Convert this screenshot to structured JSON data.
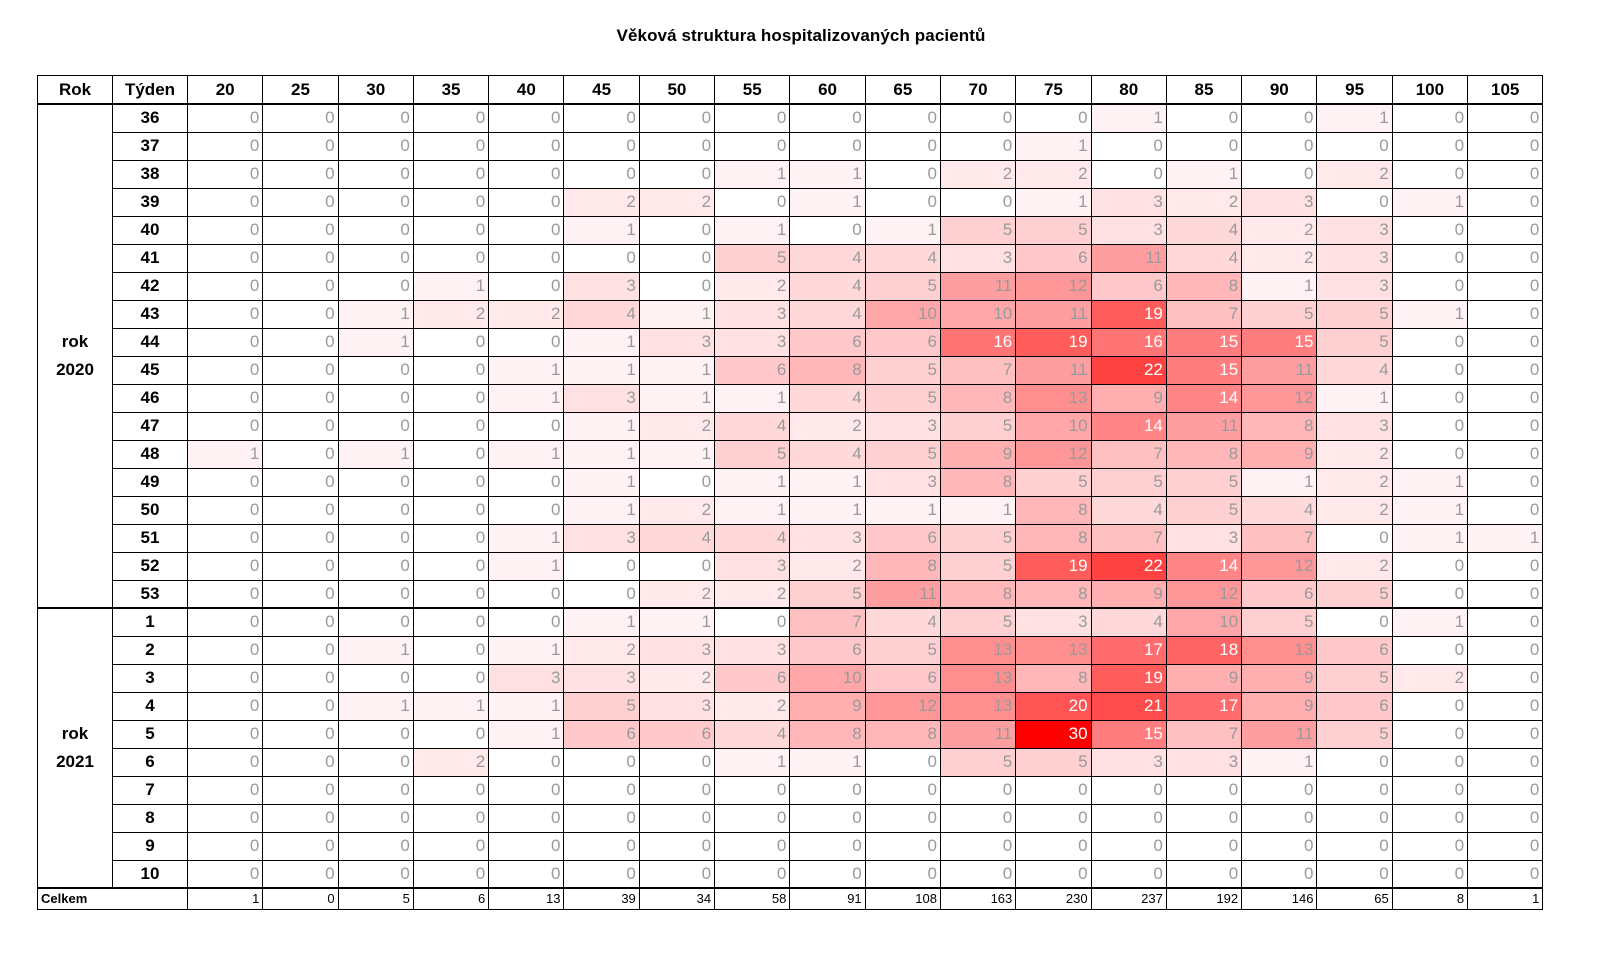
{
  "chart_data": {
    "type": "heatmap",
    "title": "Věková struktura hospitalizovaných pacientů",
    "header_year": "Rok",
    "header_week": "Týden",
    "x": [
      "20",
      "25",
      "30",
      "35",
      "40",
      "45",
      "50",
      "55",
      "60",
      "65",
      "70",
      "75",
      "80",
      "85",
      "90",
      "95",
      "100",
      "105"
    ],
    "groups": [
      {
        "label_line1": "rok",
        "label_line2": "2020",
        "rows": [
          {
            "week": "36",
            "values": [
              0,
              0,
              0,
              0,
              0,
              0,
              0,
              0,
              0,
              0,
              0,
              0,
              1,
              0,
              0,
              1,
              0,
              0
            ]
          },
          {
            "week": "37",
            "values": [
              0,
              0,
              0,
              0,
              0,
              0,
              0,
              0,
              0,
              0,
              0,
              1,
              0,
              0,
              0,
              0,
              0,
              0
            ]
          },
          {
            "week": "38",
            "values": [
              0,
              0,
              0,
              0,
              0,
              0,
              0,
              1,
              1,
              0,
              2,
              2,
              0,
              1,
              0,
              2,
              0,
              0
            ]
          },
          {
            "week": "39",
            "values": [
              0,
              0,
              0,
              0,
              0,
              2,
              2,
              0,
              1,
              0,
              0,
              1,
              3,
              2,
              3,
              0,
              1,
              0
            ]
          },
          {
            "week": "40",
            "values": [
              0,
              0,
              0,
              0,
              0,
              1,
              0,
              1,
              0,
              1,
              5,
              5,
              3,
              4,
              2,
              3,
              0,
              0
            ]
          },
          {
            "week": "41",
            "values": [
              0,
              0,
              0,
              0,
              0,
              0,
              0,
              5,
              4,
              4,
              3,
              6,
              11,
              4,
              2,
              3,
              0,
              0
            ]
          },
          {
            "week": "42",
            "values": [
              0,
              0,
              0,
              1,
              0,
              3,
              0,
              2,
              4,
              5,
              11,
              12,
              6,
              8,
              1,
              3,
              0,
              0
            ]
          },
          {
            "week": "43",
            "values": [
              0,
              0,
              1,
              2,
              2,
              4,
              1,
              3,
              4,
              10,
              10,
              11,
              19,
              7,
              5,
              5,
              1,
              0
            ]
          },
          {
            "week": "44",
            "values": [
              0,
              0,
              1,
              0,
              0,
              1,
              3,
              3,
              6,
              6,
              16,
              19,
              16,
              15,
              15,
              5,
              0,
              0
            ]
          },
          {
            "week": "45",
            "values": [
              0,
              0,
              0,
              0,
              1,
              1,
              1,
              6,
              8,
              5,
              7,
              11,
              22,
              15,
              11,
              4,
              0,
              0
            ]
          },
          {
            "week": "46",
            "values": [
              0,
              0,
              0,
              0,
              1,
              3,
              1,
              1,
              4,
              5,
              8,
              13,
              9,
              14,
              12,
              1,
              0,
              0
            ]
          },
          {
            "week": "47",
            "values": [
              0,
              0,
              0,
              0,
              0,
              1,
              2,
              4,
              2,
              3,
              5,
              10,
              14,
              11,
              8,
              3,
              0,
              0
            ]
          },
          {
            "week": "48",
            "values": [
              1,
              0,
              1,
              0,
              1,
              1,
              1,
              5,
              4,
              5,
              9,
              12,
              7,
              8,
              9,
              2,
              0,
              0
            ]
          },
          {
            "week": "49",
            "values": [
              0,
              0,
              0,
              0,
              0,
              1,
              0,
              1,
              1,
              3,
              8,
              5,
              5,
              5,
              1,
              2,
              1,
              0
            ]
          },
          {
            "week": "50",
            "values": [
              0,
              0,
              0,
              0,
              0,
              1,
              2,
              1,
              1,
              1,
              1,
              8,
              4,
              5,
              4,
              2,
              1,
              0
            ]
          },
          {
            "week": "51",
            "values": [
              0,
              0,
              0,
              0,
              1,
              3,
              4,
              4,
              3,
              6,
              5,
              8,
              7,
              3,
              7,
              0,
              1,
              1
            ]
          },
          {
            "week": "52",
            "values": [
              0,
              0,
              0,
              0,
              1,
              0,
              0,
              3,
              2,
              8,
              5,
              19,
              22,
              14,
              12,
              2,
              0,
              0
            ]
          },
          {
            "week": "53",
            "values": [
              0,
              0,
              0,
              0,
              0,
              0,
              2,
              2,
              5,
              11,
              8,
              8,
              9,
              12,
              6,
              5,
              0,
              0
            ]
          }
        ]
      },
      {
        "label_line1": "rok",
        "label_line2": "2021",
        "rows": [
          {
            "week": "1",
            "values": [
              0,
              0,
              0,
              0,
              0,
              1,
              1,
              0,
              7,
              4,
              5,
              3,
              4,
              10,
              5,
              0,
              1,
              0
            ]
          },
          {
            "week": "2",
            "values": [
              0,
              0,
              1,
              0,
              1,
              2,
              3,
              3,
              6,
              5,
              13,
              13,
              17,
              18,
              13,
              6,
              0,
              0
            ]
          },
          {
            "week": "3",
            "values": [
              0,
              0,
              0,
              0,
              3,
              3,
              2,
              6,
              10,
              6,
              13,
              8,
              19,
              9,
              9,
              5,
              2,
              0
            ]
          },
          {
            "week": "4",
            "values": [
              0,
              0,
              1,
              1,
              1,
              5,
              3,
              2,
              9,
              12,
              13,
              20,
              21,
              17,
              9,
              6,
              0,
              0
            ]
          },
          {
            "week": "5",
            "values": [
              0,
              0,
              0,
              0,
              1,
              6,
              6,
              4,
              8,
              8,
              11,
              30,
              15,
              7,
              11,
              5,
              0,
              0
            ]
          },
          {
            "week": "6",
            "values": [
              0,
              0,
              0,
              2,
              0,
              0,
              0,
              1,
              1,
              0,
              5,
              5,
              3,
              3,
              1,
              0,
              0,
              0
            ]
          },
          {
            "week": "7",
            "values": [
              0,
              0,
              0,
              0,
              0,
              0,
              0,
              0,
              0,
              0,
              0,
              0,
              0,
              0,
              0,
              0,
              0,
              0
            ]
          },
          {
            "week": "8",
            "values": [
              0,
              0,
              0,
              0,
              0,
              0,
              0,
              0,
              0,
              0,
              0,
              0,
              0,
              0,
              0,
              0,
              0,
              0
            ]
          },
          {
            "week": "9",
            "values": [
              0,
              0,
              0,
              0,
              0,
              0,
              0,
              0,
              0,
              0,
              0,
              0,
              0,
              0,
              0,
              0,
              0,
              0
            ]
          },
          {
            "week": "10",
            "values": [
              0,
              0,
              0,
              0,
              0,
              0,
              0,
              0,
              0,
              0,
              0,
              0,
              0,
              0,
              0,
              0,
              0,
              0
            ]
          }
        ]
      }
    ],
    "totals_label": "Celkem",
    "totals": [
      1,
      0,
      5,
      6,
      13,
      39,
      34,
      58,
      91,
      108,
      163,
      230,
      237,
      192,
      146,
      65,
      8,
      1
    ],
    "color_scale": {
      "min": "#ffffff",
      "max": "#ff0000",
      "range": [
        0,
        30
      ]
    }
  }
}
